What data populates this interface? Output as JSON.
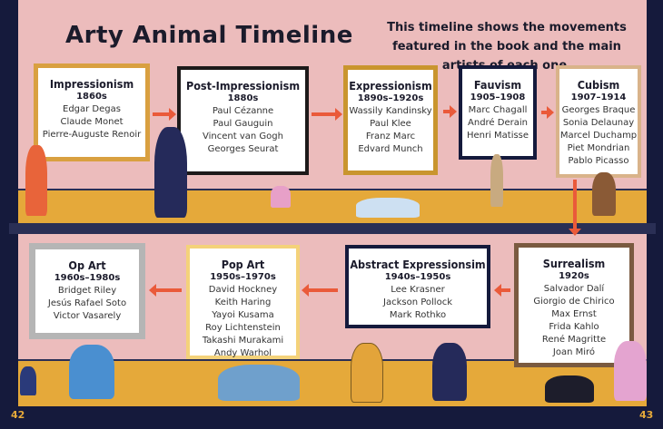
{
  "title": "Arty Animal Timeline",
  "intro": "This timeline shows the movements featured in the book and the main artists of each one.",
  "colors": {
    "wall": "#ecbcbc",
    "floor": "#e5a93a",
    "arrow": "#ea5a3a",
    "frame_dark": "#151a3c"
  },
  "movements": [
    {
      "name": "Impressionism",
      "dates": "1860s",
      "artists": [
        "Edgar Degas",
        "Claude Monet",
        "Pierre-Auguste Renoir"
      ]
    },
    {
      "name": "Post-Impressionism",
      "dates": "1880s",
      "artists": [
        "Paul Cézanne",
        "Paul Gauguin",
        "Vincent van Gogh",
        "Georges Seurat"
      ]
    },
    {
      "name": "Expressionism",
      "dates": "1890s–1920s",
      "artists": [
        "Wassily Kandinsky",
        "Paul Klee",
        "Franz Marc",
        "Edvard Munch"
      ]
    },
    {
      "name": "Fauvism",
      "dates": "1905–1908",
      "artists": [
        "Marc Chagall",
        "André Derain",
        "Henri Matisse"
      ]
    },
    {
      "name": "Cubism",
      "dates": "1907–1914",
      "artists": [
        "Georges Braque",
        "Sonia Delaunay",
        "Marcel Duchamp",
        "Piet Mondrian",
        "Pablo Picasso"
      ]
    },
    {
      "name": "Surrealism",
      "dates": "1920s",
      "artists": [
        "Salvador Dalí",
        "Giorgio de Chirico",
        "Max Ernst",
        "Frida Kahlo",
        "René Magritte",
        "Joan Miró"
      ]
    },
    {
      "name": "Abstract Expressionsim",
      "dates": "1940s–1950s",
      "artists": [
        "Lee Krasner",
        "Jackson Pollock",
        "Mark Rothko"
      ]
    },
    {
      "name": "Pop Art",
      "dates": "1950s–1970s",
      "artists": [
        "David Hockney",
        "Keith Haring",
        "Yayoi Kusama",
        "Roy Lichtenstein",
        "Takashi Murakami",
        "Andy Warhol"
      ]
    },
    {
      "name": "Op Art",
      "dates": "1960s–1980s",
      "artists": [
        "Bridget Riley",
        "Jesús Rafael Soto",
        "Victor Vasarely"
      ]
    }
  ],
  "page_numbers": {
    "left": "42",
    "right": "43"
  }
}
